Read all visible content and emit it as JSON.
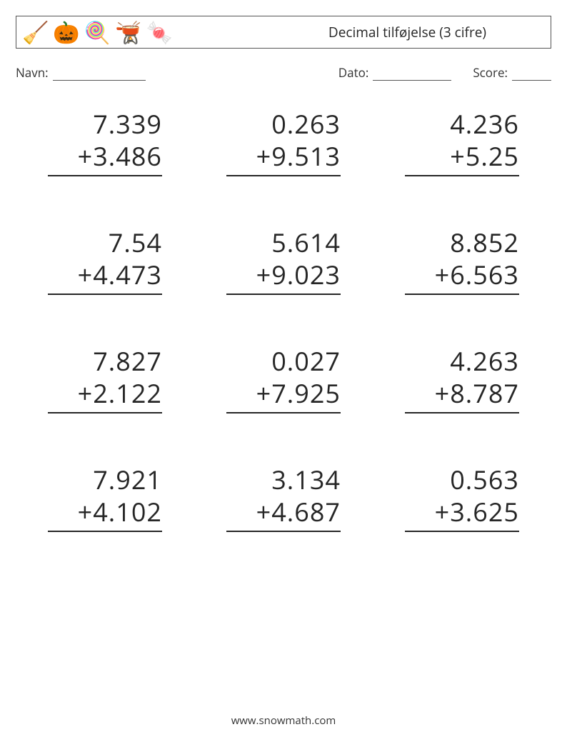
{
  "header": {
    "title": "Decimal tilføjelse (3 cifre)",
    "icons": [
      "broom-icon",
      "pumpkin-icon",
      "lollipop-icon",
      "cauldron-icon",
      "candy-icon"
    ],
    "icon_glyphs": [
      "🧹",
      "🎃",
      "🍭",
      "🫕",
      "🍬"
    ]
  },
  "meta": {
    "name_label": "Navn:",
    "date_label": "Dato:",
    "score_label": "Score:"
  },
  "worksheet": {
    "type": "arithmetic-grid",
    "operator": "+",
    "columns": 3,
    "rows": 4,
    "problem_fontsize_pt": 27,
    "text_color": "#262626",
    "rule_color": "#262626",
    "background_color": "#ffffff",
    "problems": [
      {
        "a": "7.339",
        "b": "3.486"
      },
      {
        "a": "0.263",
        "b": "9.513"
      },
      {
        "a": "4.236",
        "b": "5.25"
      },
      {
        "a": "7.54",
        "b": "4.473"
      },
      {
        "a": "5.614",
        "b": "9.023"
      },
      {
        "a": "8.852",
        "b": "6.563"
      },
      {
        "a": "7.827",
        "b": "2.122"
      },
      {
        "a": "0.027",
        "b": "7.925"
      },
      {
        "a": "4.263",
        "b": "8.787"
      },
      {
        "a": "7.921",
        "b": "4.102"
      },
      {
        "a": "3.134",
        "b": "4.687"
      },
      {
        "a": "0.563",
        "b": "3.625"
      }
    ]
  },
  "footer": {
    "text": "www.snowmath.com"
  }
}
